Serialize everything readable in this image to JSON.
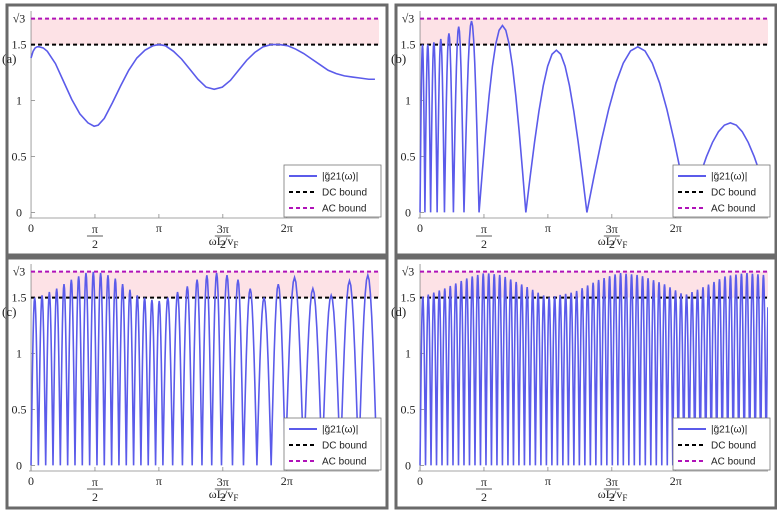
{
  "chart_data": [
    {
      "panel": "(a)",
      "type": "line",
      "xlabel": "ωL/v_F",
      "ylim": [
        -0.05,
        1.8
      ],
      "xlim": [
        -0.05,
        8.55
      ],
      "yticks": [
        {
          "v": 0,
          "t": "0"
        },
        {
          "v": 0.5,
          "t": "0.5"
        },
        {
          "v": 1,
          "t": "1"
        },
        {
          "v": 1.5,
          "t": "1.5"
        },
        {
          "v": 1.7320508,
          "t": "√3"
        }
      ],
      "xticks": [
        {
          "v": 0,
          "t": "0"
        },
        {
          "v": 1.5708,
          "t": "π/2"
        },
        {
          "v": 3.1416,
          "t": "π"
        },
        {
          "v": 4.7124,
          "t": "3π/2"
        },
        {
          "v": 6.2832,
          "t": "2π"
        }
      ],
      "dc_bound": 1.5,
      "ac_bound": 1.7320508,
      "legend": [
        "|g̃21(ω)|",
        "DC bound",
        "AC bound"
      ],
      "legend_position": "bottom-right",
      "x": [
        0,
        0.05,
        0.1,
        0.15,
        0.2,
        0.3,
        0.4,
        0.6,
        0.8,
        1.0,
        1.2,
        1.4,
        1.55,
        1.65,
        1.8,
        2.0,
        2.2,
        2.4,
        2.6,
        2.8,
        3.0,
        3.14,
        3.3,
        3.5,
        3.7,
        3.9,
        4.1,
        4.3,
        4.5,
        4.7,
        4.9,
        5.1,
        5.3,
        5.5,
        5.7,
        5.9,
        6.1,
        6.3,
        6.5,
        6.7,
        6.9,
        7.1,
        7.3,
        7.5,
        7.7,
        7.9,
        8.1,
        8.3,
        8.45
      ],
      "y": [
        1.38,
        1.44,
        1.47,
        1.48,
        1.48,
        1.47,
        1.44,
        1.33,
        1.17,
        1.01,
        0.88,
        0.8,
        0.77,
        0.78,
        0.84,
        0.98,
        1.13,
        1.27,
        1.38,
        1.45,
        1.49,
        1.5,
        1.49,
        1.44,
        1.37,
        1.28,
        1.19,
        1.12,
        1.1,
        1.12,
        1.18,
        1.27,
        1.36,
        1.43,
        1.48,
        1.5,
        1.5,
        1.49,
        1.46,
        1.42,
        1.37,
        1.32,
        1.27,
        1.24,
        1.22,
        1.21,
        1.2,
        1.19,
        1.19
      ]
    },
    {
      "panel": "(b)",
      "type": "line",
      "xlabel": "ωL/v_F",
      "ylim": [
        -0.05,
        1.8
      ],
      "xlim": [
        -0.05,
        8.55
      ],
      "yticks": [
        {
          "v": 0,
          "t": "0"
        },
        {
          "v": 0.5,
          "t": "0.5"
        },
        {
          "v": 1,
          "t": "1"
        },
        {
          "v": 1.5,
          "t": "1.5"
        },
        {
          "v": 1.7320508,
          "t": "√3"
        }
      ],
      "xticks": [
        {
          "v": 0,
          "t": "0"
        },
        {
          "v": 1.5708,
          "t": "π/2"
        },
        {
          "v": 3.1416,
          "t": "π"
        },
        {
          "v": 4.7124,
          "t": "3π/2"
        },
        {
          "v": 6.2832,
          "t": "2π"
        }
      ],
      "dc_bound": 1.5,
      "ac_bound": 1.7320508,
      "legend": [
        "|g̃21(ω)|",
        "DC bound",
        "AC bound"
      ],
      "legend_position": "bottom-right",
      "zeros": [
        0,
        0.12,
        0.26,
        0.42,
        0.6,
        0.82,
        1.08,
        1.45,
        2.6,
        4.1,
        6.6,
        8.65
      ],
      "peaks": [
        1.5,
        1.5,
        1.52,
        1.55,
        1.6,
        1.66,
        1.71,
        1.67,
        1.45,
        1.48,
        0.8
      ]
    },
    {
      "panel": "(c)",
      "type": "line",
      "xlabel": "ωL/v_F",
      "ylim": [
        -0.05,
        1.8
      ],
      "xlim": [
        -0.05,
        8.55
      ],
      "yticks": [
        {
          "v": 0,
          "t": "0"
        },
        {
          "v": 0.5,
          "t": "0.5"
        },
        {
          "v": 1,
          "t": "1"
        },
        {
          "v": 1.5,
          "t": "1.5"
        },
        {
          "v": 1.7320508,
          "t": "√3"
        }
      ],
      "xticks": [
        {
          "v": 0,
          "t": "0"
        },
        {
          "v": 1.5708,
          "t": "π/2"
        },
        {
          "v": 3.1416,
          "t": "π"
        },
        {
          "v": 4.7124,
          "t": "3π/2"
        },
        {
          "v": 6.2832,
          "t": "2π"
        }
      ],
      "dc_bound": 1.5,
      "ac_bound": 1.7320508,
      "legend": [
        "|g̃21(ω)|",
        "DC bound",
        "AC bound"
      ],
      "legend_position": "bottom-right",
      "zeros": [
        0,
        0.18,
        0.36,
        0.54,
        0.72,
        0.9,
        1.08,
        1.26,
        1.44,
        1.62,
        1.8,
        1.98,
        2.16,
        2.34,
        2.52,
        2.7,
        2.88,
        3.06,
        3.24,
        3.48,
        3.72,
        3.96,
        4.2,
        4.44,
        4.68,
        4.95,
        5.22,
        5.55,
        5.9,
        6.25,
        6.7,
        7.15,
        7.6,
        8.05,
        8.5
      ],
      "peaks": [
        1.5,
        1.52,
        1.55,
        1.58,
        1.62,
        1.66,
        1.69,
        1.72,
        1.73,
        1.72,
        1.7,
        1.67,
        1.62,
        1.57,
        1.52,
        1.5,
        1.48,
        1.47,
        1.5,
        1.55,
        1.6,
        1.66,
        1.7,
        1.72,
        1.7,
        1.66,
        1.58,
        1.5,
        1.62,
        1.68,
        1.58,
        1.52,
        1.65,
        1.7
      ]
    },
    {
      "panel": "(d)",
      "type": "line",
      "xlabel": "ωL/v_F",
      "ylim": [
        -0.05,
        1.8
      ],
      "xlim": [
        -0.05,
        8.55
      ],
      "yticks": [
        {
          "v": 0,
          "t": "0"
        },
        {
          "v": 0.5,
          "t": "0.5"
        },
        {
          "v": 1,
          "t": "1"
        },
        {
          "v": 1.5,
          "t": "1.5"
        },
        {
          "v": 1.7320508,
          "t": "√3"
        }
      ],
      "xticks": [
        {
          "v": 0,
          "t": "0"
        },
        {
          "v": 1.5708,
          "t": "π/2"
        },
        {
          "v": 3.1416,
          "t": "π"
        },
        {
          "v": 4.7124,
          "t": "3π/2"
        },
        {
          "v": 6.2832,
          "t": "2π"
        }
      ],
      "dc_bound": 1.5,
      "ac_bound": 1.7320508,
      "legend": [
        "|g̃21(ω)|",
        "DC bound",
        "AC bound"
      ],
      "legend_position": "bottom-right",
      "oscillation_period": 0.135,
      "envelope_x": [
        0,
        0.6,
        1.2,
        1.6,
        2.0,
        2.6,
        3.14,
        3.8,
        4.4,
        4.9,
        5.4,
        6.0,
        6.5,
        7.0,
        7.5,
        8.0,
        8.5
      ],
      "envelope_y": [
        1.5,
        1.58,
        1.68,
        1.72,
        1.7,
        1.6,
        1.5,
        1.55,
        1.66,
        1.72,
        1.7,
        1.62,
        1.52,
        1.6,
        1.69,
        1.72,
        1.7
      ]
    }
  ],
  "style": {
    "curve_color": "#5b5bea",
    "dc_color": "#000000",
    "ac_color": "#b012b8",
    "band_color": "#fde2e6",
    "frame_color": "#6a6a6a"
  }
}
